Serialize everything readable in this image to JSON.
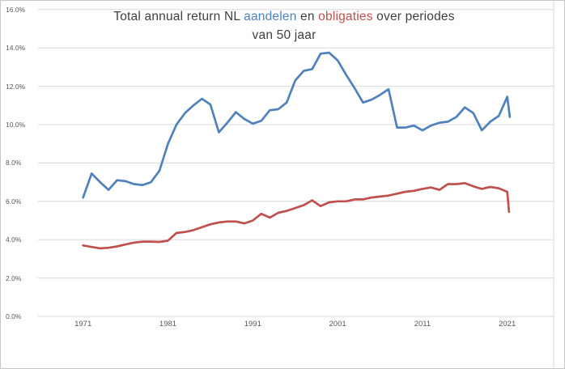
{
  "chart_data": {
    "type": "line",
    "title": {
      "line1_prefix": "Total annual return NL ",
      "stocks_word": "aandelen",
      "connector": " en ",
      "bonds_word": "obligaties",
      "line1_suffix": " over periodes",
      "line2": "van 50 jaar"
    },
    "legend": "none",
    "grid": true,
    "ylim": [
      0,
      16
    ],
    "xlim_years": [
      1966,
      2026.5
    ],
    "colors": {
      "aandelen": "#4F81BD",
      "obligaties": "#C0504D",
      "gridline": "#D9D9D9",
      "title_text": "#404040",
      "tick_text": "#595959"
    },
    "y_ticks": [
      {
        "label": "16.0%",
        "value": 16
      },
      {
        "label": "14.0%",
        "value": 14
      },
      {
        "label": "12.0%",
        "value": 12
      },
      {
        "label": "10.0%",
        "value": 10
      },
      {
        "label": "8.0%",
        "value": 8
      },
      {
        "label": "6.0%",
        "value": 6
      },
      {
        "label": "4.0%",
        "value": 4
      },
      {
        "label": "2.0%",
        "value": 2
      },
      {
        "label": "0.0%",
        "value": 0
      }
    ],
    "x_ticks": [
      1971,
      1981,
      1991,
      2001,
      2011,
      2021
    ],
    "series": [
      {
        "name": "aandelen",
        "color_key": "aandelen",
        "points": [
          [
            1971,
            6.2
          ],
          [
            1972,
            7.45
          ],
          [
            1973,
            7.0
          ],
          [
            1974,
            6.6
          ],
          [
            1975,
            7.1
          ],
          [
            1976,
            7.05
          ],
          [
            1977,
            6.9
          ],
          [
            1978,
            6.85
          ],
          [
            1979,
            7.0
          ],
          [
            1980,
            7.6
          ],
          [
            1981,
            9.0
          ],
          [
            1982,
            10.0
          ],
          [
            1983,
            10.6
          ],
          [
            1984,
            11.0
          ],
          [
            1985,
            11.35
          ],
          [
            1986,
            11.05
          ],
          [
            1987,
            9.6
          ],
          [
            1988,
            10.1
          ],
          [
            1989,
            10.65
          ],
          [
            1990,
            10.3
          ],
          [
            1991,
            10.05
          ],
          [
            1992,
            10.2
          ],
          [
            1993,
            10.75
          ],
          [
            1994,
            10.8
          ],
          [
            1995,
            11.15
          ],
          [
            1996,
            12.3
          ],
          [
            1997,
            12.8
          ],
          [
            1998,
            12.9
          ],
          [
            1999,
            13.7
          ],
          [
            2000,
            13.75
          ],
          [
            2001,
            13.35
          ],
          [
            2002,
            12.6
          ],
          [
            2003,
            11.9
          ],
          [
            2004,
            11.15
          ],
          [
            2005,
            11.3
          ],
          [
            2006,
            11.55
          ],
          [
            2007,
            11.85
          ],
          [
            2008,
            9.85
          ],
          [
            2009,
            9.85
          ],
          [
            2010,
            9.95
          ],
          [
            2011,
            9.7
          ],
          [
            2012,
            9.95
          ],
          [
            2013,
            10.1
          ],
          [
            2014,
            10.15
          ],
          [
            2015,
            10.4
          ],
          [
            2016,
            10.9
          ],
          [
            2017,
            10.6
          ],
          [
            2018,
            9.7
          ],
          [
            2019,
            10.15
          ],
          [
            2020,
            10.45
          ],
          [
            2021,
            11.45
          ],
          [
            2021.3,
            10.4
          ]
        ]
      },
      {
        "name": "obligaties",
        "color_key": "obligaties",
        "points": [
          [
            1971,
            3.7
          ],
          [
            1972,
            3.62
          ],
          [
            1973,
            3.55
          ],
          [
            1974,
            3.58
          ],
          [
            1975,
            3.65
          ],
          [
            1976,
            3.75
          ],
          [
            1977,
            3.85
          ],
          [
            1978,
            3.9
          ],
          [
            1979,
            3.9
          ],
          [
            1980,
            3.88
          ],
          [
            1981,
            3.95
          ],
          [
            1982,
            4.35
          ],
          [
            1983,
            4.4
          ],
          [
            1984,
            4.5
          ],
          [
            1985,
            4.65
          ],
          [
            1986,
            4.8
          ],
          [
            1987,
            4.9
          ],
          [
            1988,
            4.95
          ],
          [
            1989,
            4.95
          ],
          [
            1990,
            4.85
          ],
          [
            1991,
            5.0
          ],
          [
            1992,
            5.35
          ],
          [
            1993,
            5.15
          ],
          [
            1994,
            5.4
          ],
          [
            1995,
            5.5
          ],
          [
            1996,
            5.65
          ],
          [
            1997,
            5.8
          ],
          [
            1998,
            6.05
          ],
          [
            1999,
            5.75
          ],
          [
            2000,
            5.95
          ],
          [
            2001,
            6.0
          ],
          [
            2002,
            6.0
          ],
          [
            2003,
            6.1
          ],
          [
            2004,
            6.1
          ],
          [
            2005,
            6.2
          ],
          [
            2006,
            6.25
          ],
          [
            2007,
            6.3
          ],
          [
            2008,
            6.4
          ],
          [
            2009,
            6.5
          ],
          [
            2010,
            6.55
          ],
          [
            2011,
            6.65
          ],
          [
            2012,
            6.72
          ],
          [
            2013,
            6.6
          ],
          [
            2014,
            6.9
          ],
          [
            2015,
            6.9
          ],
          [
            2016,
            6.95
          ],
          [
            2017,
            6.78
          ],
          [
            2018,
            6.65
          ],
          [
            2019,
            6.75
          ],
          [
            2020,
            6.68
          ],
          [
            2021,
            6.5
          ],
          [
            2021.2,
            5.45
          ]
        ]
      }
    ]
  }
}
